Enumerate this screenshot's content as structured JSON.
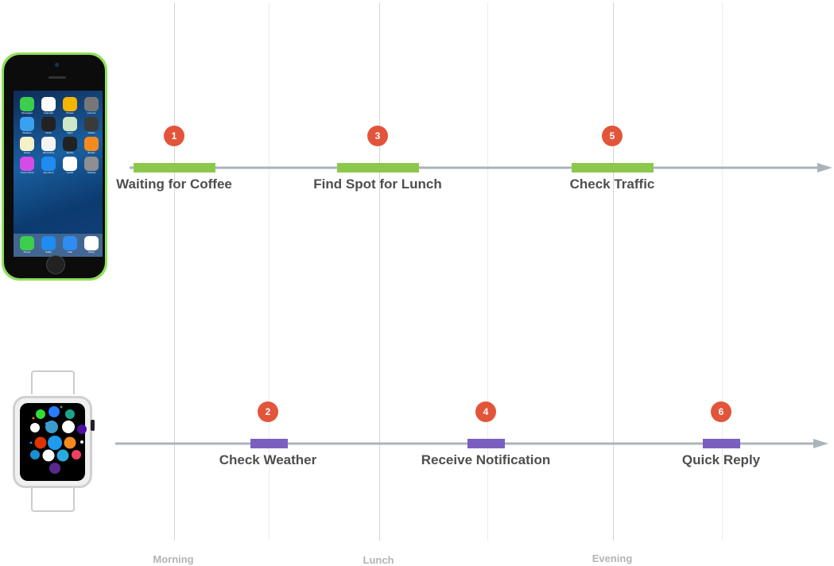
{
  "colors": {
    "phone_bar": "#8cc84b",
    "watch_bar": "#7b5fc0",
    "step_marker": "#e2553b",
    "axis": "#aab4bb",
    "gridline_major": "#d4d4d4",
    "gridline_minor": "#ececec"
  },
  "devices": {
    "phone": {
      "icon": "iphone-device-icon",
      "apps": [
        "Messages",
        "Calendar",
        "Photos",
        "Camera",
        "Weather",
        "Clock",
        "Maps",
        "Videos",
        "Notes",
        "Reminders",
        "Stocks",
        "iBooks",
        "iTunes Store",
        "App Store",
        "Health",
        "Settings"
      ],
      "dock": [
        "Phone",
        "Safari",
        "Mail",
        "Music"
      ],
      "calendar_day": "10"
    },
    "watch": {
      "icon": "apple-watch-device-icon"
    }
  },
  "time_labels": [
    "Morning",
    "Lunch",
    "Evening"
  ],
  "phone_track": {
    "events": [
      {
        "step": "1",
        "label": "Waiting for Coffee"
      },
      {
        "step": "3",
        "label": "Find Spot for Lunch"
      },
      {
        "step": "5",
        "label": "Check Traffic"
      }
    ]
  },
  "watch_track": {
    "events": [
      {
        "step": "2",
        "label": "Check Weather"
      },
      {
        "step": "4",
        "label": "Receive Notification"
      },
      {
        "step": "6",
        "label": "Quick Reply"
      }
    ]
  }
}
